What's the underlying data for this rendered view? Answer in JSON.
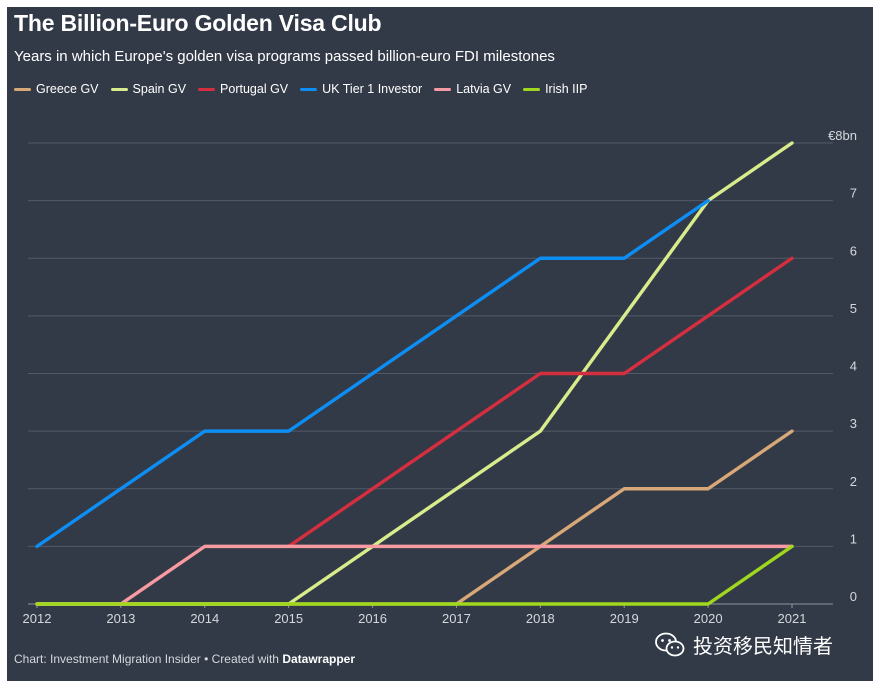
{
  "title": "The Billion-Euro Golden Visa Club",
  "subtitle": "Years in which Europe's golden visa programs passed billion-euro FDI milestones",
  "footer": {
    "prefix": "Chart: Investment Migration Insider • Created with ",
    "brand": "Datawrapper"
  },
  "watermark": {
    "text": "投资移民知情者",
    "icon": "wechat-icon"
  },
  "colors": {
    "background": "#333a47",
    "grid": "#525a68",
    "axis": "#8e949e",
    "text": "#ffffff",
    "tick_text": "#d5d8dd"
  },
  "chart_data": {
    "type": "line",
    "title": "The Billion-Euro Golden Visa Club",
    "xlabel": "",
    "ylabel": "",
    "x": [
      2012,
      2013,
      2014,
      2015,
      2016,
      2017,
      2018,
      2019,
      2020,
      2021
    ],
    "x_tick_labels": [
      "2012",
      "2013",
      "2014",
      "2015",
      "2016",
      "2017",
      "2018",
      "2019",
      "2020",
      "2021"
    ],
    "ylim": [
      0,
      8
    ],
    "y_ticks": [
      0,
      1,
      2,
      3,
      4,
      5,
      6,
      7,
      8
    ],
    "y_tick_labels": [
      "0",
      "1",
      "2",
      "3",
      "4",
      "5",
      "6",
      "7",
      "€8bn"
    ],
    "grid": true,
    "legend_position": "top-left",
    "series": [
      {
        "name": "Greece GV",
        "color": "#d9a878",
        "x": [
          2012,
          2017,
          2018,
          2019,
          2020,
          2021
        ],
        "values": [
          0,
          0,
          1,
          2,
          2,
          3
        ]
      },
      {
        "name": "Spain GV",
        "color": "#d9ec8c",
        "x": [
          2012,
          2015,
          2018,
          2020,
          2021
        ],
        "values": [
          0,
          0,
          3,
          7,
          8
        ]
      },
      {
        "name": "Portugal GV",
        "color": "#d52e3f",
        "x": [
          2015,
          2018,
          2019,
          2021
        ],
        "values": [
          1,
          4,
          4,
          6
        ]
      },
      {
        "name": "UK Tier 1 Investor",
        "color": "#0d8ef5",
        "x": [
          2012,
          2014,
          2015,
          2018,
          2019,
          2020
        ],
        "values": [
          1,
          3,
          3,
          6,
          6,
          7
        ]
      },
      {
        "name": "Latvia GV",
        "color": "#f79aa1",
        "x": [
          2012,
          2013,
          2014,
          2021
        ],
        "values": [
          0,
          0,
          1,
          1
        ]
      },
      {
        "name": "Irish IIP",
        "color": "#9fd81c",
        "x": [
          2012,
          2020,
          2021
        ],
        "values": [
          0,
          0,
          1
        ]
      }
    ]
  }
}
